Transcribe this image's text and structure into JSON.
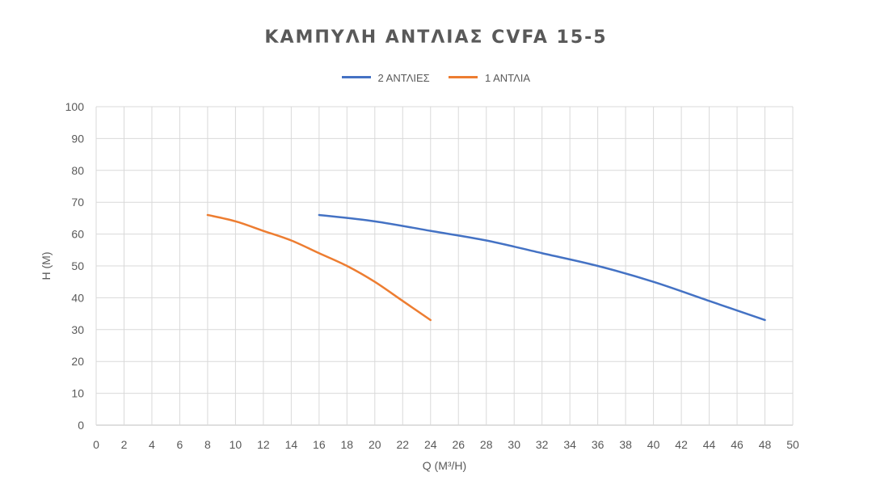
{
  "chart_data": {
    "type": "line",
    "title": "ΚΑΜΠΥΛΗ ΑΝΤΛΙΑΣ CVFA 15-5",
    "xlabel": "Q (M³/H)",
    "ylabel": "H (M)",
    "xlim": [
      0,
      50
    ],
    "ylim": [
      0,
      100
    ],
    "xticks": [
      0,
      2,
      4,
      6,
      8,
      10,
      12,
      14,
      16,
      18,
      20,
      22,
      24,
      26,
      28,
      30,
      32,
      34,
      36,
      38,
      40,
      42,
      44,
      46,
      48,
      50
    ],
    "yticks": [
      0,
      10,
      20,
      30,
      40,
      50,
      60,
      70,
      80,
      90,
      100
    ],
    "grid": true,
    "legend_position": "top",
    "series": [
      {
        "name": "2 ΑΝΤΛΙΕΣ",
        "color": "#4472C4",
        "x": [
          16,
          20,
          24,
          28,
          32,
          36,
          40,
          44,
          48
        ],
        "y": [
          66,
          64,
          61,
          58,
          54,
          50,
          45,
          39,
          33
        ]
      },
      {
        "name": "1 ΑΝΤΛΙΑ",
        "color": "#ED7D31",
        "x": [
          8,
          10,
          12,
          14,
          16,
          18,
          20,
          22,
          24
        ],
        "y": [
          66,
          64,
          61,
          58,
          54,
          50,
          45,
          39,
          33
        ]
      }
    ]
  }
}
